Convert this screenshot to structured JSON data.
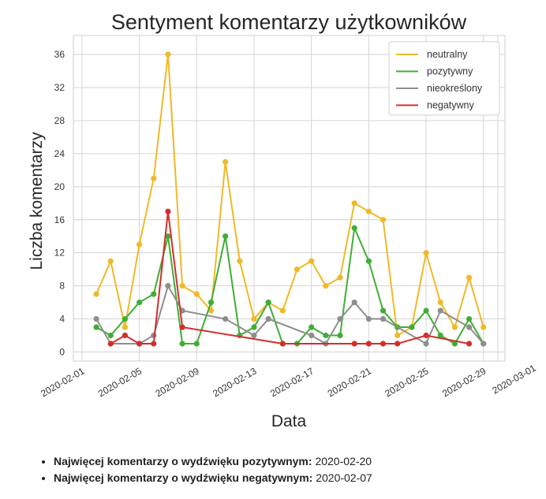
{
  "chart_data": {
    "type": "line",
    "title": "Sentyment komentarzy użytkowników",
    "xlabel": "Data",
    "ylabel": "Liczba komentarzy",
    "x": [
      "2020-02-02",
      "2020-02-03",
      "2020-02-04",
      "2020-02-05",
      "2020-02-06",
      "2020-02-07",
      "2020-02-08",
      "2020-02-09",
      "2020-02-10",
      "2020-02-11",
      "2020-02-12",
      "2020-02-13",
      "2020-02-14",
      "2020-02-15",
      "2020-02-16",
      "2020-02-17",
      "2020-02-18",
      "2020-02-19",
      "2020-02-20",
      "2020-02-21",
      "2020-02-22",
      "2020-02-23",
      "2020-02-24",
      "2020-02-25",
      "2020-02-26",
      "2020-02-27",
      "2020-02-28",
      "2020-02-29"
    ],
    "series": [
      {
        "name": "neutralny",
        "color": "#f0b928",
        "values": [
          7,
          11,
          3,
          13,
          21,
          36,
          8,
          7,
          5,
          23,
          11,
          4,
          6,
          5,
          10,
          11,
          8,
          9,
          18,
          17,
          16,
          2,
          3,
          12,
          6,
          3,
          9,
          3
        ]
      },
      {
        "name": "pozytywny",
        "color": "#3fae35",
        "values": [
          3,
          2,
          4,
          6,
          7,
          14,
          1,
          1,
          6,
          14,
          2,
          3,
          6,
          1,
          1,
          3,
          2,
          2,
          15,
          11,
          5,
          3,
          3,
          5,
          2,
          1,
          4,
          1
        ]
      },
      {
        "name": "nieokreślony",
        "color": "#8e8e8e",
        "values": [
          4,
          1,
          null,
          1,
          2,
          8,
          5,
          null,
          null,
          4,
          null,
          2,
          4,
          null,
          null,
          2,
          1,
          4,
          6,
          4,
          4,
          null,
          null,
          1,
          5,
          null,
          3,
          1
        ]
      },
      {
        "name": "negatywny",
        "color": "#d22f2b",
        "values": [
          null,
          1,
          2,
          1,
          1,
          17,
          3,
          null,
          null,
          null,
          null,
          null,
          null,
          1,
          null,
          null,
          null,
          null,
          1,
          1,
          1,
          1,
          null,
          2,
          null,
          null,
          1,
          null
        ]
      }
    ],
    "xticks": [
      "2020-02-01",
      "2020-02-05",
      "2020-02-09",
      "2020-02-13",
      "2020-02-17",
      "2020-02-21",
      "2020-02-25",
      "2020-02-29",
      "2020-03-01"
    ],
    "yticks": [
      0,
      4,
      8,
      12,
      16,
      20,
      24,
      28,
      32,
      36
    ],
    "xlim": [
      "2020-01-31",
      "2020-03-01"
    ],
    "ylim": [
      -1.1,
      38.3
    ],
    "grid": true,
    "legend": "top-right"
  },
  "notes": [
    {
      "label": "Najwięcej komentarzy o wydźwięku pozytywnym:",
      "value": "2020-02-20"
    },
    {
      "label": "Najwięcej komentarzy o wydźwięku negatywnym:",
      "value": "2020-02-07"
    }
  ]
}
